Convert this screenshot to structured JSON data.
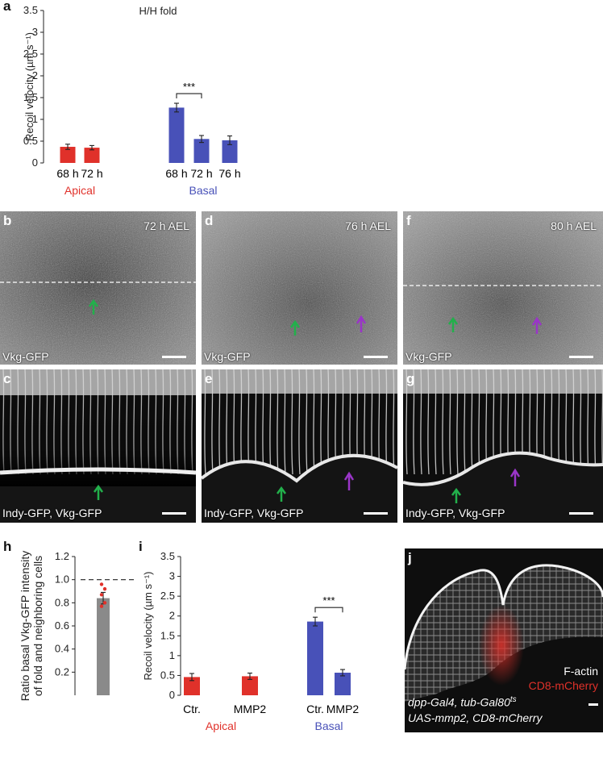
{
  "panel_labels": {
    "a": "a",
    "b": "b",
    "c": "c",
    "d": "d",
    "e": "e",
    "f": "f",
    "g": "g",
    "h": "h",
    "i": "i",
    "j": "j"
  },
  "chart_data": [
    {
      "id": "a",
      "type": "bar",
      "title": "H/H fold",
      "ylabel": "Recoil velocity (µm s⁻¹)",
      "ylim": [
        0,
        3.5
      ],
      "yticks": [
        0,
        0.5,
        1,
        1.5,
        2,
        2.5,
        3,
        3.5
      ],
      "categories": [
        "68 h",
        "72 h",
        "68 h",
        "72 h",
        "76 h"
      ],
      "values": [
        0.37,
        0.35,
        1.27,
        0.55,
        0.52
      ],
      "errors": [
        0.06,
        0.05,
        0.1,
        0.08,
        0.1
      ],
      "groups": [
        {
          "name": "Apical",
          "color": "#e0312a",
          "indices": [
            0,
            1
          ]
        },
        {
          "name": "Basal",
          "color": "#4851b8",
          "indices": [
            2,
            3,
            4
          ]
        }
      ],
      "significance": [
        {
          "pair": [
            2,
            3
          ],
          "label": "***"
        }
      ]
    },
    {
      "id": "h",
      "type": "bar",
      "ylabel_lines": [
        "Ratio basal Vkg-GFP intensity",
        "of fold and neighboring cells"
      ],
      "ylim": [
        0,
        1.2
      ],
      "yticks": [
        0.2,
        0.4,
        0.6,
        0.8,
        1.0,
        1.2
      ],
      "ytick_labels": [
        "0.2",
        "0.4",
        "0.6",
        "0.8",
        "1.0",
        "1.2"
      ],
      "values": [
        0.84
      ],
      "errors": [
        0.05
      ],
      "bar_color": "#8a8a8a",
      "points": [
        0.96,
        0.92,
        0.87,
        0.8,
        0.77
      ],
      "point_color": "#e0312a",
      "reference_line": 1.0
    },
    {
      "id": "i",
      "type": "bar",
      "ylabel": "Recoil velocity (µm s⁻¹)",
      "ylim": [
        0,
        3.5
      ],
      "yticks": [
        0,
        0.5,
        1,
        1.5,
        2,
        2.5,
        3,
        3.5
      ],
      "categories": [
        "Ctr.",
        "MMP2",
        "Ctr.",
        "MMP2"
      ],
      "values": [
        0.46,
        0.48,
        1.86,
        0.57
      ],
      "errors": [
        0.09,
        0.08,
        0.11,
        0.08
      ],
      "groups": [
        {
          "name": "Apical",
          "color": "#e0312a",
          "indices": [
            0,
            1
          ]
        },
        {
          "name": "Basal",
          "color": "#4851b8",
          "indices": [
            2,
            3
          ]
        }
      ],
      "significance": [
        {
          "pair": [
            2,
            3
          ],
          "label": "***"
        }
      ]
    }
  ],
  "micrographs": {
    "b": {
      "time": "72 h AEL",
      "stain": "Vkg-GFP"
    },
    "d": {
      "time": "76 h AEL",
      "stain": "Vkg-GFP"
    },
    "f": {
      "time": "80 h AEL",
      "stain": "Vkg-GFP"
    },
    "c": {
      "stain": "Indy-GFP, Vkg-GFP"
    },
    "e": {
      "stain": "Indy-GFP, Vkg-GFP"
    },
    "g": {
      "stain": "Indy-GFP, Vkg-GFP"
    },
    "j": {
      "stain1": "F-actin",
      "stain2": "CD8-mCherry",
      "genotype1": "dpp-Gal4, tub-Gal80",
      "genotype1_sup": "ts",
      "genotype2": "UAS-mmp2, CD8-mCherry"
    }
  },
  "colors": {
    "apical": "#e0312a",
    "basal": "#4851b8",
    "arrow_green": "#22b04b",
    "arrow_purple": "#9a35c8",
    "mcherry": "#e0312a"
  }
}
